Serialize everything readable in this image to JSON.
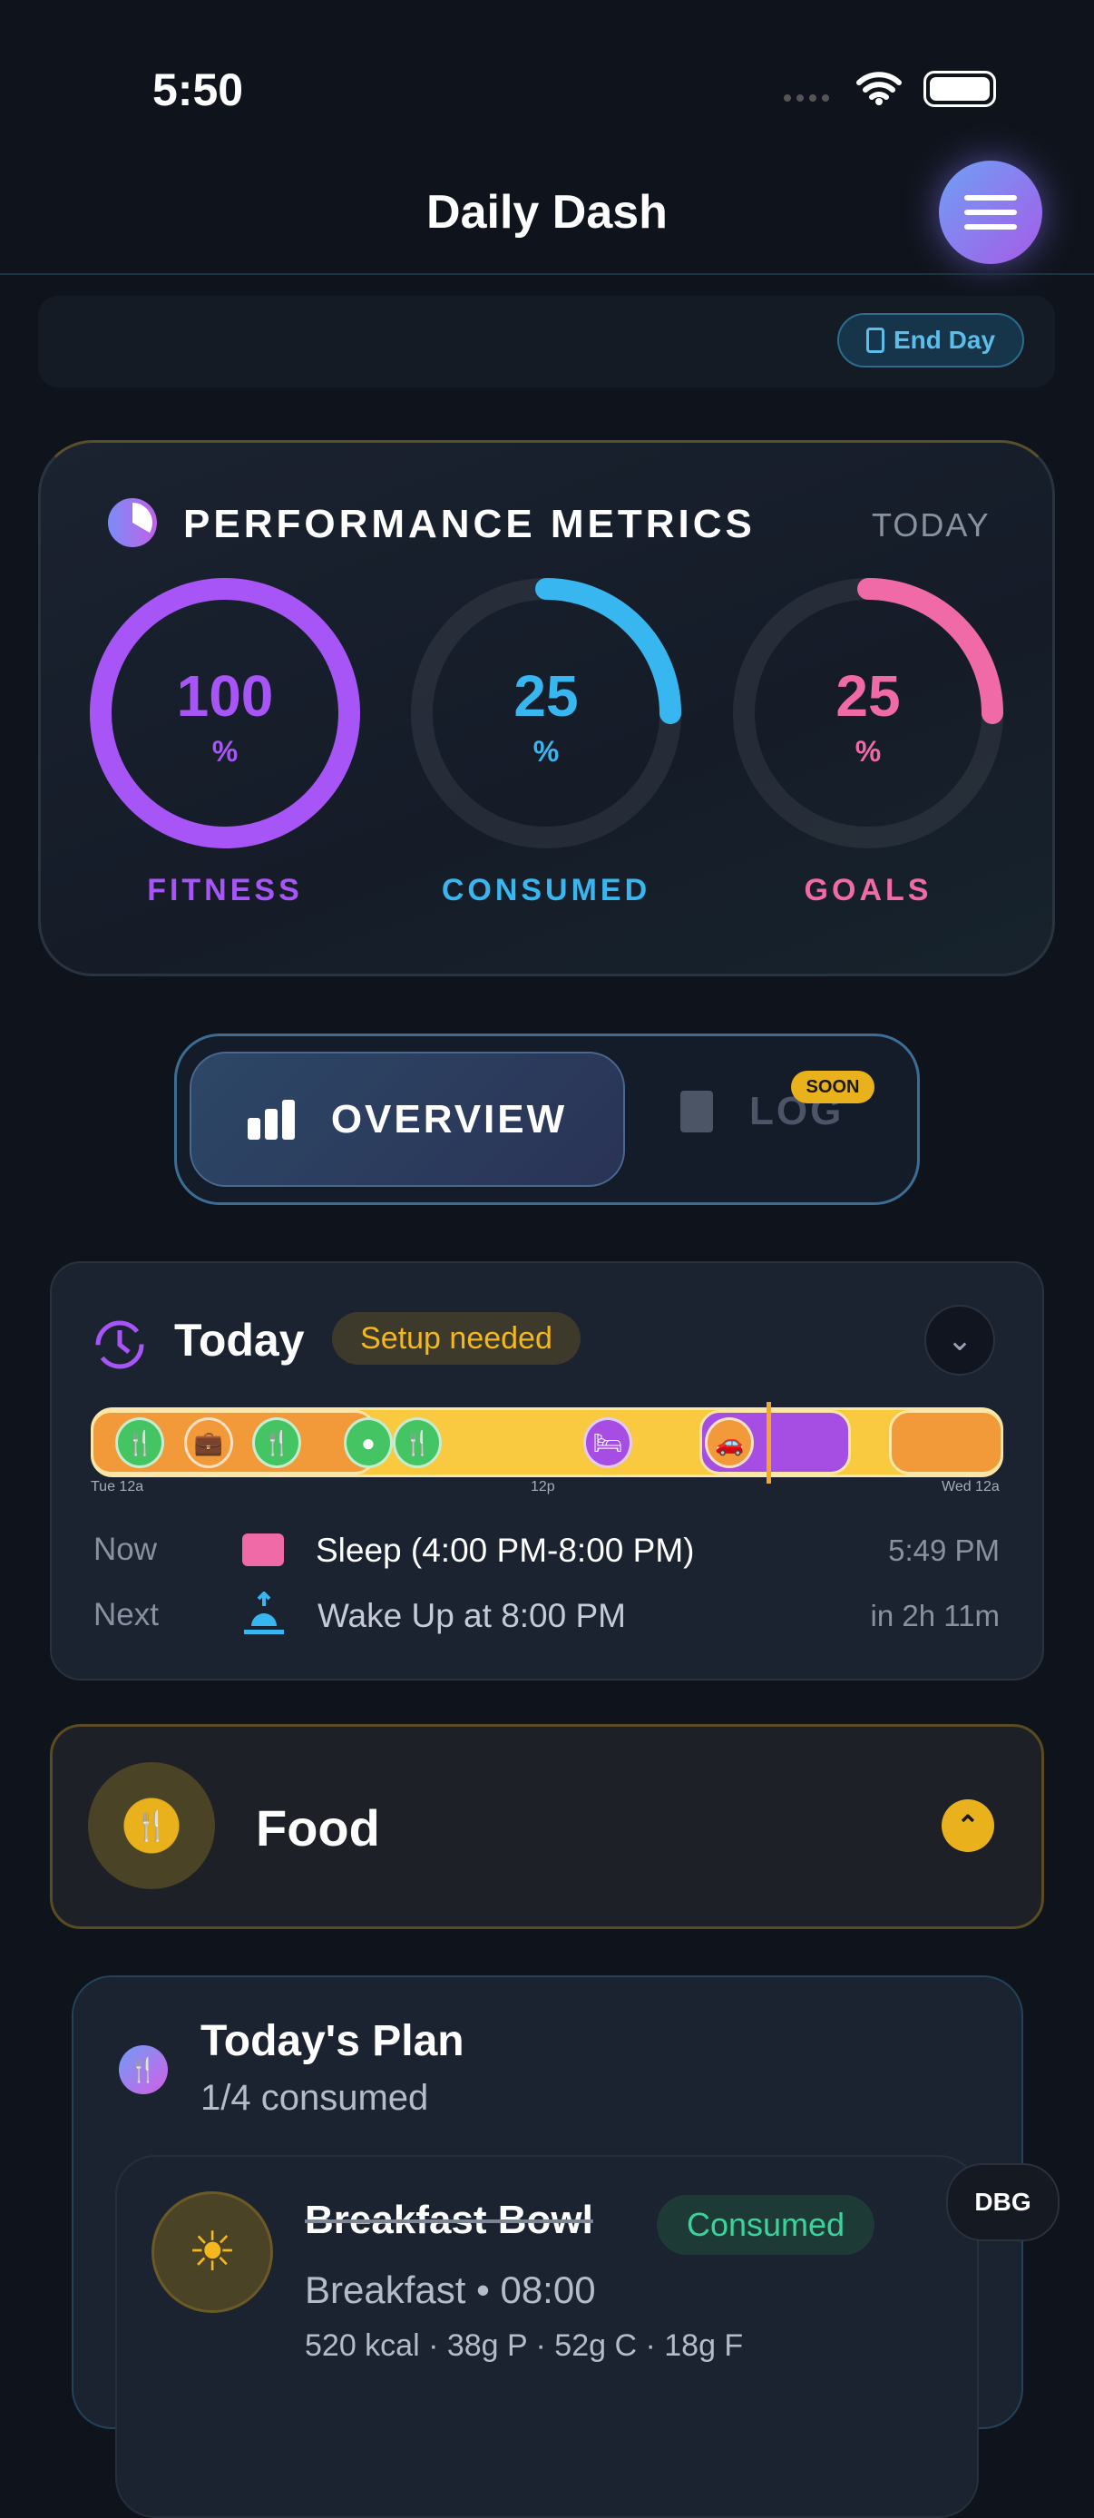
{
  "status_bar": {
    "time": "5:50"
  },
  "header": {
    "title": "Daily Dash",
    "menu_icon": "hamburger-icon"
  },
  "day_bar": {
    "end_day_label": "End Day"
  },
  "metrics": {
    "title": "PERFORMANCE METRICS",
    "period": "TODAY",
    "rings": [
      {
        "label": "FITNESS",
        "value": "100",
        "unit": "%",
        "percent": 100,
        "color": "#a855f7"
      },
      {
        "label": "CONSUMED",
        "value": "25",
        "unit": "%",
        "percent": 25,
        "color": "#38b6f0"
      },
      {
        "label": "GOALS",
        "value": "25",
        "unit": "%",
        "percent": 25,
        "color": "#f06aa8"
      }
    ]
  },
  "tabs": {
    "overview": "OVERVIEW",
    "log": "LOG",
    "soon_badge": "SOON"
  },
  "today": {
    "title": "Today",
    "badge": "Setup needed",
    "timeline": {
      "start_label": "Tue 12a",
      "mid_label": "12p",
      "end_label": "Wed 12a",
      "now_hour": 17.82,
      "segments": [
        {
          "start": 0,
          "end": 7.5,
          "color": "#f29a3a"
        },
        {
          "start": 16,
          "end": 20,
          "color": "#a64ee3"
        },
        {
          "start": 21,
          "end": 24,
          "color": "#f29a3a"
        }
      ],
      "icons": [
        {
          "hour": 1.3,
          "icon": "fork-knife-icon",
          "color": "#45c463"
        },
        {
          "hour": 3.1,
          "icon": "briefcase-icon",
          "color": "#f29a3a"
        },
        {
          "hour": 4.9,
          "icon": "fork-knife-icon",
          "color": "#45c463"
        },
        {
          "hour": 7.3,
          "icon": "apple-icon",
          "color": "#45c463"
        },
        {
          "hour": 8.6,
          "icon": "fork-knife-icon",
          "color": "#45c463"
        },
        {
          "hour": 13.6,
          "icon": "bed-icon",
          "color": "#a64ee3"
        },
        {
          "hour": 16.8,
          "icon": "car-icon",
          "color": "#f29a3a"
        }
      ]
    },
    "now": {
      "label": "Now",
      "text": "Sleep (4:00 PM-8:00 PM)",
      "time": "5:49 PM"
    },
    "next": {
      "label": "Next",
      "text": "Wake Up at 8:00 PM",
      "time": "in 2h 11m"
    }
  },
  "food": {
    "title": "Food"
  },
  "plan": {
    "title": "Today's Plan",
    "subtitle": "1/4 consumed",
    "meal": {
      "name": "Breakfast Bowl",
      "status": "Consumed",
      "meta": "Breakfast • 08:00",
      "macros": "520 kcal · 38g P · 52g C · 18g F"
    }
  },
  "debug": {
    "label": "DBG"
  }
}
